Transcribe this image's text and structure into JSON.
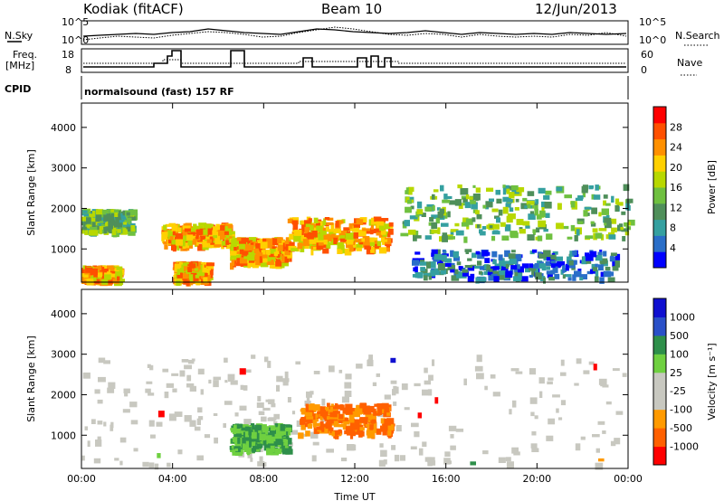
{
  "header": {
    "station": "Kodiak (fitACF)",
    "beam": "Beam 10",
    "date": "12/Jun/2013"
  },
  "summary_panels": {
    "nsky_label": "N.Sky",
    "nsky_ticks": [
      "10^5",
      "10^0"
    ],
    "nsearch_label": "N.Search",
    "nsearch_ticks": [
      "10^5",
      "10^0"
    ],
    "freq_label": "Freq.",
    "freq_unit": "[MHz]",
    "freq_ticks": [
      "18",
      "8"
    ],
    "nave_label": "Nave",
    "nave_ticks": [
      "60",
      "0"
    ],
    "cpid_label": "CPID",
    "cpid_value": "normalsound (fast) 157 RF"
  },
  "chart_data": [
    {
      "type": "heatmap",
      "panel": "power",
      "ylabel": "Slant Range [km]",
      "xlabel": "",
      "x_ticks": [
        "00:00",
        "04:00",
        "08:00",
        "12:00",
        "16:00",
        "20:00",
        "00:00"
      ],
      "x_range_hours": [
        0,
        24
      ],
      "ylim": [
        180,
        4600
      ],
      "y_ticks": [
        1000,
        2000,
        3000,
        4000
      ],
      "colorbar": {
        "label": "Power [dB]",
        "ticks": [
          "28",
          "24",
          "20",
          "16",
          "12",
          "8",
          "4"
        ],
        "colors": [
          "#0000ff",
          "#2a6ec8",
          "#35a0a0",
          "#4f8f5a",
          "#6fc040",
          "#b8d800",
          "#ffd000",
          "#ff9000",
          "#ff5000",
          "#ff0000"
        ]
      },
      "echo_regions": [
        {
          "t": [
            0.0,
            2.2
          ],
          "r": [
            1450,
            2000
          ],
          "level": "medium"
        },
        {
          "t": [
            0.0,
            1.6
          ],
          "r": [
            230,
            600
          ],
          "level": "high"
        },
        {
          "t": [
            4.0,
            5.5
          ],
          "r": [
            230,
            700
          ],
          "level": "high"
        },
        {
          "t": [
            3.5,
            6.5
          ],
          "r": [
            1100,
            1650
          ],
          "level": "high"
        },
        {
          "t": [
            6.5,
            9.0
          ],
          "r": [
            650,
            1300
          ],
          "level": "high"
        },
        {
          "t": [
            9.0,
            13.5
          ],
          "r": [
            1000,
            1800
          ],
          "level": "high"
        },
        {
          "t": [
            14.0,
            24.0
          ],
          "r": [
            1300,
            2600
          ],
          "level": "medium"
        },
        {
          "t": [
            14.5,
            23.5
          ],
          "r": [
            300,
            1000
          ],
          "level": "low"
        }
      ]
    },
    {
      "type": "heatmap",
      "panel": "velocity",
      "ylabel": "Slant Range [km]",
      "xlabel": "Time UT",
      "x_ticks": [
        "00:00",
        "04:00",
        "08:00",
        "12:00",
        "16:00",
        "20:00",
        "00:00"
      ],
      "x_range_hours": [
        0,
        24
      ],
      "ylim": [
        180,
        4600
      ],
      "y_ticks": [
        1000,
        2000,
        3000,
        4000
      ],
      "colorbar": {
        "label": "Velocity [m s⁻¹]",
        "ticks": [
          "1000",
          "500",
          "100",
          "25",
          "-25",
          "-100",
          "-500",
          "-1000"
        ],
        "colors": [
          "#ff0000",
          "#ff6000",
          "#ff9a00",
          "#c8c8c0",
          "#c8c8c0",
          "#6fd040",
          "#2e8f4a",
          "#2a50c8",
          "#1010d0"
        ]
      },
      "echo_regions": [
        {
          "t": [
            0.0,
            24.0
          ],
          "r": [
            300,
            3000
          ],
          "level": "ground"
        },
        {
          "t": [
            6.5,
            9.0
          ],
          "r": [
            650,
            1300
          ],
          "level": "toward"
        },
        {
          "t": [
            9.5,
            13.5
          ],
          "r": [
            1050,
            1800
          ],
          "level": "away"
        }
      ]
    }
  ]
}
